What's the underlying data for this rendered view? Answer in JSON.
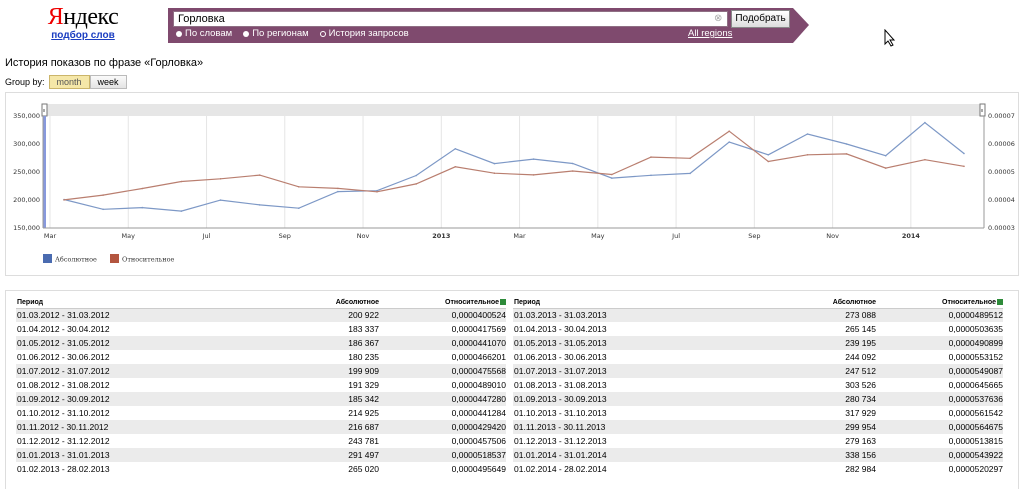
{
  "logo": {
    "brand_red": "Я",
    "brand_rest": "ндекс",
    "subtitle": "подбор слов"
  },
  "search": {
    "query": "Горловка",
    "button": "Подобрать",
    "modes": [
      "По словам",
      "По регионам",
      "История запросов"
    ],
    "selected_mode": 2,
    "regions_link": "All regions"
  },
  "page": {
    "title": "История показов по фразе «Горловка»",
    "group_by_label": "Group by:",
    "group_options": [
      "month",
      "week"
    ],
    "group_selected": "month"
  },
  "colors": {
    "absolute": "#7d98c6",
    "relative": "#b97e6f",
    "legend_absolute": "#4a6bb0",
    "legend_relative": "#b3553f",
    "bar": "#7f4a6e"
  },
  "chart_data": {
    "type": "line",
    "x": [
      "2012-03",
      "2012-04",
      "2012-05",
      "2012-06",
      "2012-07",
      "2012-08",
      "2012-09",
      "2012-10",
      "2012-11",
      "2012-12",
      "2013-01",
      "2013-02",
      "2013-03",
      "2013-04",
      "2013-05",
      "2013-06",
      "2013-07",
      "2013-08",
      "2013-09",
      "2013-10",
      "2013-11",
      "2013-12",
      "2014-01",
      "2014-02"
    ],
    "x_tick_labels": [
      "Mar",
      "May",
      "Jul",
      "Sep",
      "Nov",
      "2013",
      "Mar",
      "May",
      "Jul",
      "Sep",
      "Nov",
      "2014"
    ],
    "y_left": {
      "ticks": [
        "150,000",
        "200,000",
        "250,000",
        "300,000",
        "350,000"
      ],
      "range": [
        150000,
        350000
      ]
    },
    "y_right": {
      "ticks": [
        "0.00003",
        "0.00004",
        "0.00005",
        "0.00006",
        "0.00007"
      ],
      "range": [
        3e-05,
        7e-05
      ]
    },
    "series": [
      {
        "name": "Абсолютное",
        "axis": "left",
        "values": [
          200922,
          183337,
          186367,
          180235,
          199909,
          191329,
          185342,
          214925,
          216687,
          243781,
          291497,
          265020,
          273088,
          265145,
          239195,
          244092,
          247512,
          303526,
          280734,
          317929,
          299954,
          279163,
          338156,
          282984
        ]
      },
      {
        "name": "Относительное",
        "axis": "right",
        "values": [
          4.00524e-05,
          4.17569e-05,
          4.4107e-05,
          4.66201e-05,
          4.75568e-05,
          4.8901e-05,
          4.4728e-05,
          4.41284e-05,
          4.2942e-05,
          4.57506e-05,
          5.18537e-05,
          4.95649e-05,
          4.89512e-05,
          5.03635e-05,
          4.90899e-05,
          5.53152e-05,
          5.49087e-05,
          6.45665e-05,
          5.37636e-05,
          5.61542e-05,
          5.64675e-05,
          5.13815e-05,
          5.43922e-05,
          5.20297e-05
        ]
      }
    ],
    "legend": [
      "Абсолютное",
      "Относительное"
    ],
    "legend_placement": "bottom-left"
  },
  "table": {
    "headers": [
      "Период",
      "Абсолютное",
      "Относительное"
    ],
    "left_rows": [
      [
        "01.03.2012 - 31.03.2012",
        "200 922",
        "0,0000400524"
      ],
      [
        "01.04.2012 - 30.04.2012",
        "183 337",
        "0,0000417569"
      ],
      [
        "01.05.2012 - 31.05.2012",
        "186 367",
        "0,0000441070"
      ],
      [
        "01.06.2012 - 30.06.2012",
        "180 235",
        "0,0000466201"
      ],
      [
        "01.07.2012 - 31.07.2012",
        "199 909",
        "0,0000475568"
      ],
      [
        "01.08.2012 - 31.08.2012",
        "191 329",
        "0,0000489010"
      ],
      [
        "01.09.2012 - 30.09.2012",
        "185 342",
        "0,0000447280"
      ],
      [
        "01.10.2012 - 31.10.2012",
        "214 925",
        "0,0000441284"
      ],
      [
        "01.11.2012 - 30.11.2012",
        "216 687",
        "0,0000429420"
      ],
      [
        "01.12.2012 - 31.12.2012",
        "243 781",
        "0,0000457506"
      ],
      [
        "01.01.2013 - 31.01.2013",
        "291 497",
        "0,0000518537"
      ],
      [
        "01.02.2013 - 28.02.2013",
        "265 020",
        "0,0000495649"
      ]
    ],
    "right_rows": [
      [
        "01.03.2013 - 31.03.2013",
        "273 088",
        "0,0000489512"
      ],
      [
        "01.04.2013 - 30.04.2013",
        "265 145",
        "0,0000503635"
      ],
      [
        "01.05.2013 - 31.05.2013",
        "239 195",
        "0,0000490899"
      ],
      [
        "01.06.2013 - 30.06.2013",
        "244 092",
        "0,0000553152"
      ],
      [
        "01.07.2013 - 31.07.2013",
        "247 512",
        "0,0000549087"
      ],
      [
        "01.08.2013 - 31.08.2013",
        "303 526",
        "0,0000645665"
      ],
      [
        "01.09.2013 - 30.09.2013",
        "280 734",
        "0,0000537636"
      ],
      [
        "01.10.2013 - 31.10.2013",
        "317 929",
        "0,0000561542"
      ],
      [
        "01.11.2013 - 30.11.2013",
        "299 954",
        "0,0000564675"
      ],
      [
        "01.12.2013 - 31.12.2013",
        "279 163",
        "0,0000513815"
      ],
      [
        "01.01.2014 - 31.01.2014",
        "338 156",
        "0,0000543922"
      ],
      [
        "01.02.2014 - 28.02.2014",
        "282 984",
        "0,0000520297"
      ]
    ]
  }
}
